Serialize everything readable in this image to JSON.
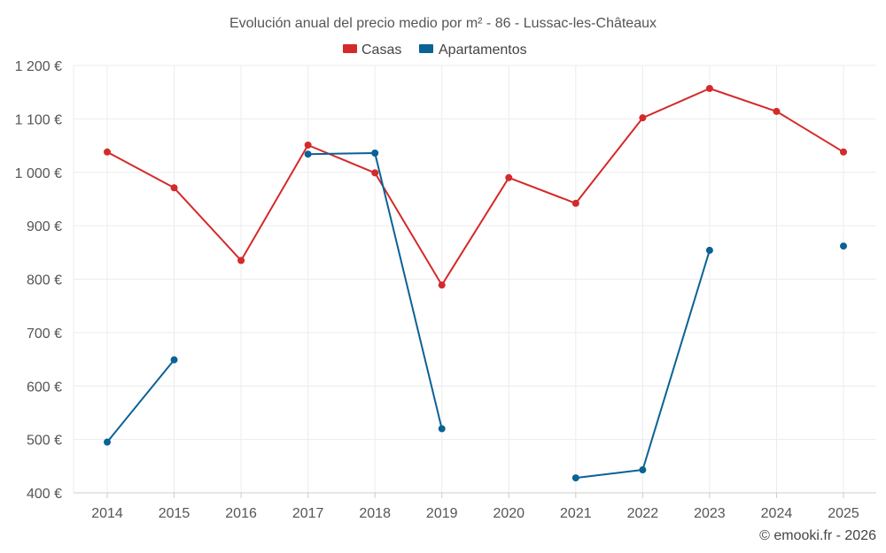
{
  "chart_data": {
    "type": "line",
    "title": "Evolución anual del precio medio por m² - 86 - Lussac-les-Châteaux",
    "categories": [
      "2014",
      "2015",
      "2016",
      "2017",
      "2018",
      "2019",
      "2020",
      "2021",
      "2022",
      "2023",
      "2024",
      "2025"
    ],
    "ylim": [
      400,
      1200
    ],
    "yticks": [
      400,
      500,
      600,
      700,
      800,
      900,
      1000,
      1100,
      1200
    ],
    "ytick_labels": [
      "400 €",
      "500 €",
      "600 €",
      "700 €",
      "800 €",
      "900 €",
      "1 000 €",
      "1 100 €",
      "1 200 €"
    ],
    "legend_position": "top-center",
    "grid": true,
    "series": [
      {
        "name": "Casas",
        "color": "#d42a2a",
        "values": [
          1038,
          971,
          835,
          1051,
          999,
          789,
          990,
          942,
          1102,
          1157,
          1114,
          1038
        ]
      },
      {
        "name": "Apartamentos",
        "color": "#0a6296",
        "values": [
          495,
          649,
          null,
          1034,
          1036,
          520,
          null,
          428,
          443,
          854,
          null,
          862
        ]
      }
    ],
    "credit": "© emooki.fr - 2026"
  }
}
